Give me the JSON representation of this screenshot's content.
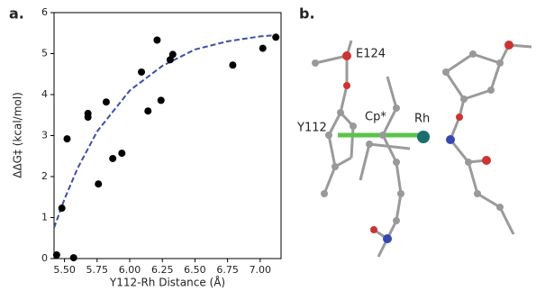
{
  "chart_data": {
    "type": "scatter",
    "panel_label": "a.",
    "x_label": "Y112-Rh Distance (Å)",
    "y_label": "ΔΔG‡ (kcal/mol)",
    "x": [
      5.44,
      5.48,
      5.52,
      5.57,
      5.68,
      5.68,
      5.76,
      5.82,
      5.87,
      5.94,
      6.09,
      6.14,
      6.21,
      6.24,
      6.31,
      6.33,
      6.79,
      7.02,
      7.12
    ],
    "values": [
      0.09,
      1.23,
      2.92,
      0.02,
      3.45,
      3.54,
      1.82,
      3.82,
      2.44,
      2.57,
      4.55,
      3.6,
      5.33,
      3.86,
      4.85,
      4.98,
      4.72,
      5.13,
      5.4
    ],
    "color": "#000000",
    "fit": {
      "x": [
        5.42,
        5.5,
        5.6,
        5.75,
        6.0,
        6.25,
        6.5,
        6.75,
        7.0,
        7.12
      ],
      "values": [
        0.75,
        1.45,
        2.2,
        3.1,
        4.1,
        4.7,
        5.1,
        5.3,
        5.42,
        5.45
      ],
      "color": "#3b4fa8"
    },
    "xlim": [
      5.42,
      7.16
    ],
    "ylim": [
      0,
      6
    ],
    "xticks": [
      {
        "value": 5.5,
        "label": "5.50"
      },
      {
        "value": 5.75,
        "label": "5.75"
      },
      {
        "value": 6.0,
        "label": "6.00"
      },
      {
        "value": 6.25,
        "label": "6.25"
      },
      {
        "value": 6.5,
        "label": "6.50"
      },
      {
        "value": 6.75,
        "label": "6.75"
      },
      {
        "value": 7.0,
        "label": "7.00"
      }
    ],
    "yticks": [
      0,
      1,
      2,
      3,
      4,
      5,
      6
    ]
  },
  "panel_b": {
    "label": "b.",
    "annotations": [
      "E124",
      "Y112",
      "Cp*",
      "Rh"
    ]
  }
}
